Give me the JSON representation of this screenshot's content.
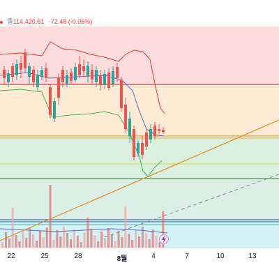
{
  "ohlc": {
    "dot_color": "#e53935",
    "close_label": "종",
    "close_value": "114,420.61",
    "change": "-72.48 (-0.06%)"
  },
  "x_axis": {
    "ticks": [
      {
        "label": "22",
        "bold": false
      },
      {
        "label": "25",
        "bold": false
      },
      {
        "label": "28",
        "bold": false
      },
      {
        "label": "8월",
        "bold": true
      },
      {
        "label": "4",
        "bold": false
      },
      {
        "label": "7",
        "bold": false
      },
      {
        "label": "10",
        "bold": false
      },
      {
        "label": "13",
        "bold": false
      }
    ]
  },
  "icons": {
    "event_marker": "flash-icon"
  },
  "colors": {
    "up": "#26a69a",
    "down": "#ef5350",
    "zone_red": "#fcdcdc",
    "zone_orange": "#fdebd5",
    "zone_green": "#d8f0dd",
    "zone_blue": "#d2f2f6",
    "trendline": "#e68a1f",
    "band_red": "#e53935",
    "band_green": "#4caf50",
    "ma_blue": "#5c6bc0"
  }
}
